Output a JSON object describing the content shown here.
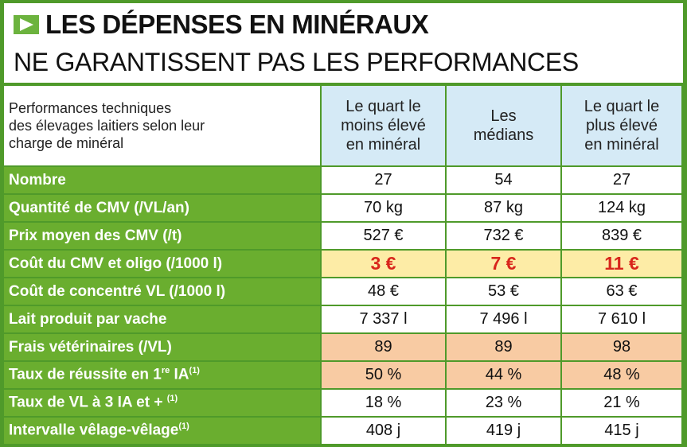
{
  "title": {
    "line1": "LES DÉPENSES EN MINÉRAUX",
    "line2": "NE GARANTISSENT PAS LES PERFORMANCES",
    "icon": "play-arrow-icon"
  },
  "colors": {
    "green": "#6aae2f",
    "header_blue": "#d5eaf6",
    "highlight_yellow": "#fdeca6",
    "highlight_orange": "#f8cba3",
    "red_text": "#d8261c"
  },
  "table": {
    "corner": [
      "Performances techniques",
      "des élevages laitiers selon leur",
      "charge de minéral"
    ],
    "columns": [
      [
        "Le quart le",
        "moins élevé",
        "en minéral"
      ],
      [
        "Les",
        "médians"
      ],
      [
        "Le quart le",
        "plus élevé",
        "en minéral"
      ]
    ],
    "rows": [
      {
        "label": "Nombre",
        "sup": "",
        "suffix": "",
        "values": [
          "27",
          "54",
          "27"
        ],
        "highlight": ""
      },
      {
        "label": "Quantité de CMV (/VL/an)",
        "sup": "",
        "suffix": "",
        "values": [
          "70 kg",
          "87 kg",
          "124 kg"
        ],
        "highlight": ""
      },
      {
        "label": "Prix moyen des CMV (/t)",
        "sup": "",
        "suffix": "",
        "values": [
          "527 €",
          "732 €",
          "839 €"
        ],
        "highlight": ""
      },
      {
        "label": "Coût du CMV et oligo (/1000 l)",
        "sup": "",
        "suffix": "",
        "values": [
          "3 €",
          "7 €",
          "11 €"
        ],
        "highlight": "yellow"
      },
      {
        "label": "Coût de concentré VL (/1000 l)",
        "sup": "",
        "suffix": "",
        "values": [
          "48 €",
          "53 €",
          "63 €"
        ],
        "highlight": ""
      },
      {
        "label": "Lait produit par vache",
        "sup": "",
        "suffix": "",
        "values": [
          "7 337 l",
          "7 496 l",
          "7 610 l"
        ],
        "highlight": ""
      },
      {
        "label": "Frais vétérinaires (/VL)",
        "sup": "",
        "suffix": "",
        "values": [
          "89",
          "89",
          "98"
        ],
        "highlight": "orange"
      },
      {
        "label": "Taux de réussite en 1",
        "sup": "re",
        "suffix": " IA",
        "sup2": "(1)",
        "values": [
          "50 %",
          "44 %",
          "48 %"
        ],
        "highlight": "orange"
      },
      {
        "label": "Taux de VL à 3 IA et + ",
        "sup": "",
        "suffix": "",
        "sup2": "(1)",
        "values": [
          "18 %",
          "23 %",
          "21 %"
        ],
        "highlight": ""
      },
      {
        "label": "Intervalle vêlage-vêlage",
        "sup": "",
        "suffix": "",
        "sup2": "(1)",
        "values": [
          "408 j",
          "419 j",
          "415 j"
        ],
        "highlight": ""
      }
    ]
  }
}
